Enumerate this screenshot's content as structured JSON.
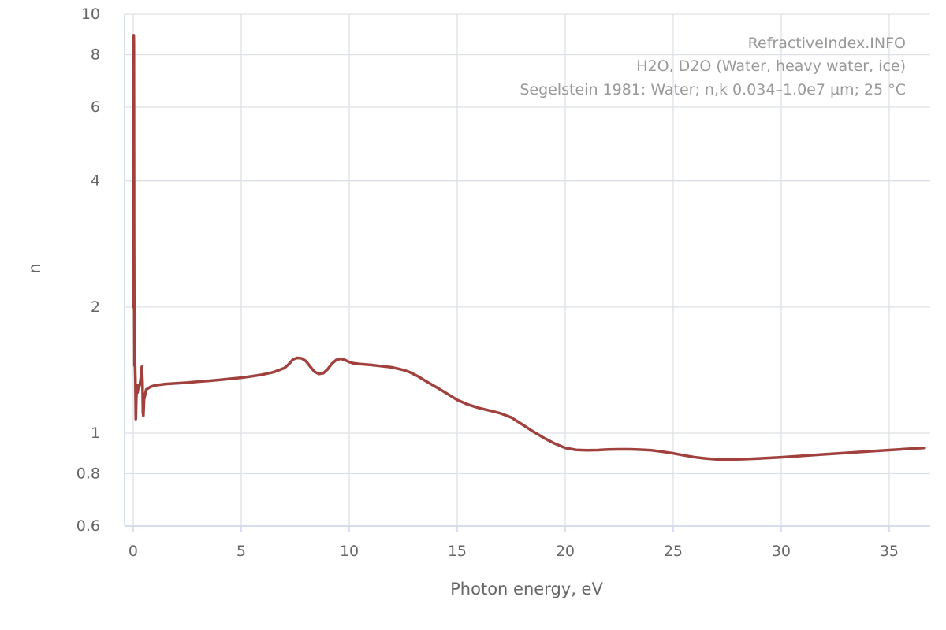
{
  "chart_data": {
    "type": "line",
    "title": "",
    "annotations": [
      "RefractiveIndex.INFO",
      "H2O, D2O (Water, heavy water, ice)",
      "Segelstein 1981: Water; n,k 0.034–1.0e7 µm; 25 °C"
    ],
    "xlabel": "Photon energy, eV",
    "ylabel": "n",
    "xlim": [
      -0.4,
      36.9
    ],
    "ylim": [
      0.6,
      10
    ],
    "y_scale": "log",
    "x_ticks": [
      0,
      5,
      10,
      15,
      20,
      25,
      30,
      35
    ],
    "x_tick_labels": [
      "0",
      "5",
      "10",
      "15",
      "20",
      "25",
      "30",
      "35"
    ],
    "y_ticks": [
      0.6,
      0.8,
      1,
      2,
      4,
      6,
      8,
      10
    ],
    "y_tick_labels": [
      "0.6",
      "0.8",
      "1",
      "2",
      "4",
      "6",
      "8",
      "10"
    ],
    "grid": true,
    "series": [
      {
        "color": "#a0413e",
        "points": [
          [
            0.0,
            2.0
          ],
          [
            0.005,
            3.0
          ],
          [
            0.01,
            4.5
          ],
          [
            0.015,
            6.5
          ],
          [
            0.02,
            8.0
          ],
          [
            0.025,
            8.9
          ],
          [
            0.03,
            8.5
          ],
          [
            0.035,
            5.5
          ],
          [
            0.04,
            3.0
          ],
          [
            0.05,
            1.9
          ],
          [
            0.06,
            1.45
          ],
          [
            0.08,
            1.5
          ],
          [
            0.1,
            1.35
          ],
          [
            0.12,
            1.08
          ],
          [
            0.14,
            1.2
          ],
          [
            0.17,
            1.3
          ],
          [
            0.2,
            1.25
          ],
          [
            0.25,
            1.3
          ],
          [
            0.3,
            1.3
          ],
          [
            0.35,
            1.35
          ],
          [
            0.4,
            1.44
          ],
          [
            0.43,
            1.32
          ],
          [
            0.45,
            1.12
          ],
          [
            0.47,
            1.1
          ],
          [
            0.5,
            1.2
          ],
          [
            0.6,
            1.27
          ],
          [
            0.8,
            1.29
          ],
          [
            1.0,
            1.3
          ],
          [
            1.5,
            1.31
          ],
          [
            2.0,
            1.315
          ],
          [
            2.5,
            1.32
          ],
          [
            3.0,
            1.327
          ],
          [
            3.5,
            1.333
          ],
          [
            4.0,
            1.34
          ],
          [
            4.5,
            1.348
          ],
          [
            5.0,
            1.356
          ],
          [
            5.5,
            1.367
          ],
          [
            6.0,
            1.38
          ],
          [
            6.5,
            1.398
          ],
          [
            7.0,
            1.43
          ],
          [
            7.2,
            1.46
          ],
          [
            7.4,
            1.5
          ],
          [
            7.6,
            1.512
          ],
          [
            7.8,
            1.508
          ],
          [
            8.0,
            1.485
          ],
          [
            8.2,
            1.44
          ],
          [
            8.4,
            1.4
          ],
          [
            8.6,
            1.385
          ],
          [
            8.8,
            1.39
          ],
          [
            9.0,
            1.42
          ],
          [
            9.2,
            1.465
          ],
          [
            9.4,
            1.495
          ],
          [
            9.6,
            1.505
          ],
          [
            9.8,
            1.495
          ],
          [
            10.0,
            1.478
          ],
          [
            10.2,
            1.468
          ],
          [
            10.5,
            1.462
          ],
          [
            11.0,
            1.455
          ],
          [
            11.5,
            1.445
          ],
          [
            12.0,
            1.435
          ],
          [
            12.5,
            1.415
          ],
          [
            12.8,
            1.398
          ],
          [
            13.2,
            1.365
          ],
          [
            13.5,
            1.335
          ],
          [
            14.0,
            1.29
          ],
          [
            14.5,
            1.245
          ],
          [
            15.0,
            1.2
          ],
          [
            15.5,
            1.17
          ],
          [
            16.0,
            1.148
          ],
          [
            16.5,
            1.132
          ],
          [
            17.0,
            1.115
          ],
          [
            17.5,
            1.09
          ],
          [
            18.0,
            1.05
          ],
          [
            18.5,
            1.01
          ],
          [
            19.0,
            0.975
          ],
          [
            19.5,
            0.945
          ],
          [
            20.0,
            0.922
          ],
          [
            20.5,
            0.912
          ],
          [
            21.0,
            0.91
          ],
          [
            21.5,
            0.911
          ],
          [
            22.0,
            0.914
          ],
          [
            22.5,
            0.915
          ],
          [
            23.0,
            0.915
          ],
          [
            23.5,
            0.913
          ],
          [
            24.0,
            0.91
          ],
          [
            24.5,
            0.903
          ],
          [
            25.0,
            0.895
          ],
          [
            25.5,
            0.885
          ],
          [
            26.0,
            0.876
          ],
          [
            26.5,
            0.87
          ],
          [
            27.0,
            0.866
          ],
          [
            27.5,
            0.865
          ],
          [
            28.0,
            0.866
          ],
          [
            28.5,
            0.868
          ],
          [
            29.0,
            0.87
          ],
          [
            29.5,
            0.873
          ],
          [
            30.0,
            0.876
          ],
          [
            31.0,
            0.883
          ],
          [
            32.0,
            0.89
          ],
          [
            33.0,
            0.897
          ],
          [
            34.0,
            0.904
          ],
          [
            35.0,
            0.911
          ],
          [
            36.0,
            0.918
          ],
          [
            36.6,
            0.922
          ]
        ]
      }
    ]
  }
}
